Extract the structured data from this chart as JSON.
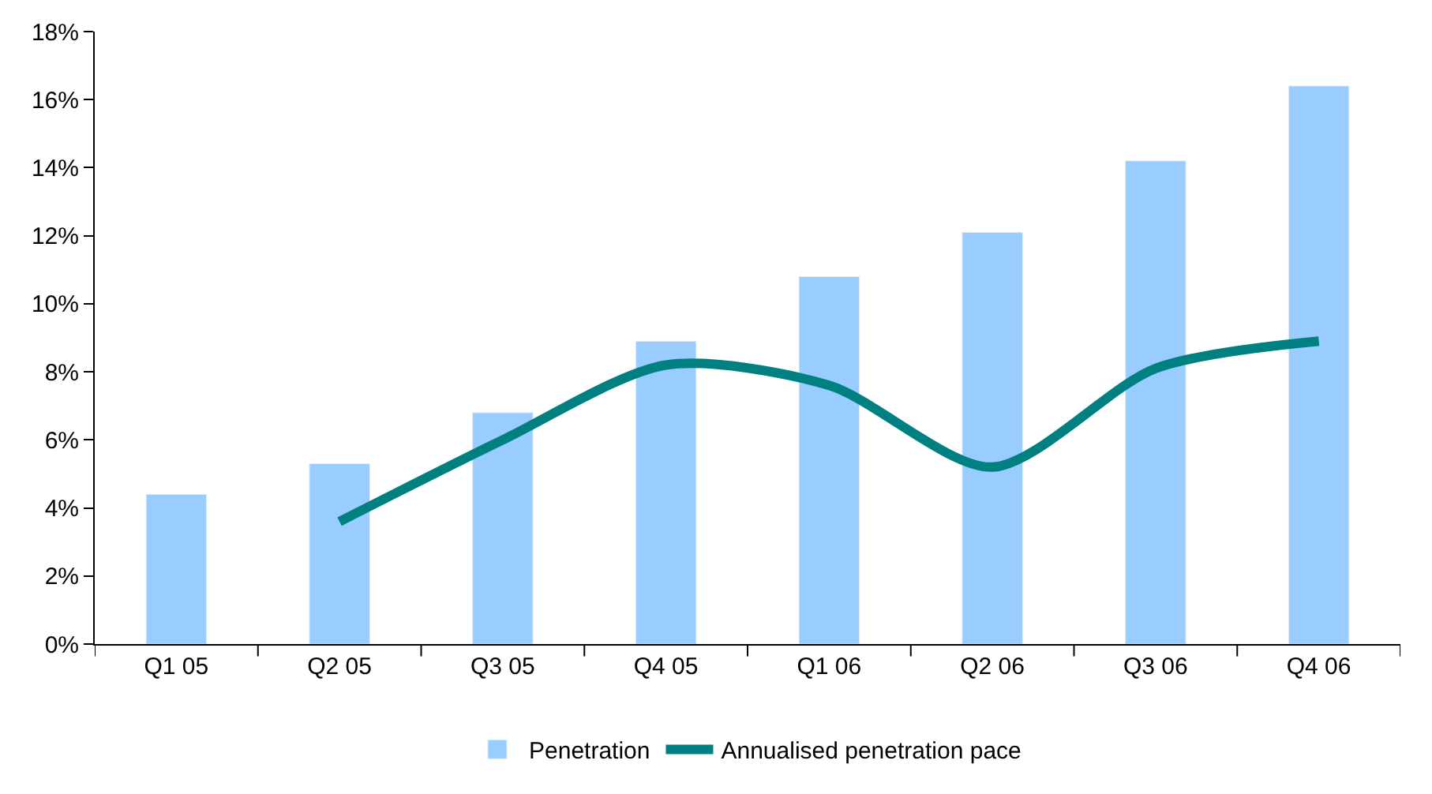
{
  "chart_data": {
    "type": "bar",
    "categories": [
      "Q1 05",
      "Q2 05",
      "Q3 05",
      "Q4 05",
      "Q1 06",
      "Q2 06",
      "Q3 06",
      "Q4 06"
    ],
    "series": [
      {
        "name": "Penetration",
        "color": "#99ccff",
        "values": [
          4.4,
          5.3,
          6.8,
          8.9,
          10.8,
          12.1,
          14.2,
          16.4
        ]
      },
      {
        "name": "Annualised penetration pace",
        "type": "line",
        "color": "#008080",
        "values": [
          null,
          3.6,
          6.0,
          8.2,
          7.6,
          5.2,
          8.1,
          8.9
        ]
      }
    ],
    "ylim": [
      0,
      18
    ],
    "yticks": [
      {
        "value": 0,
        "label": "0%"
      },
      {
        "value": 2,
        "label": "2%"
      },
      {
        "value": 4,
        "label": "4%"
      },
      {
        "value": 6,
        "label": "6%"
      },
      {
        "value": 8,
        "label": "8%"
      },
      {
        "value": 10,
        "label": "10%"
      },
      {
        "value": 12,
        "label": "12%"
      },
      {
        "value": 14,
        "label": "14%"
      },
      {
        "value": 16,
        "label": "16%"
      },
      {
        "value": 18,
        "label": "18%"
      }
    ],
    "legend": "bottom",
    "marker": "none",
    "line_style": "solid"
  }
}
